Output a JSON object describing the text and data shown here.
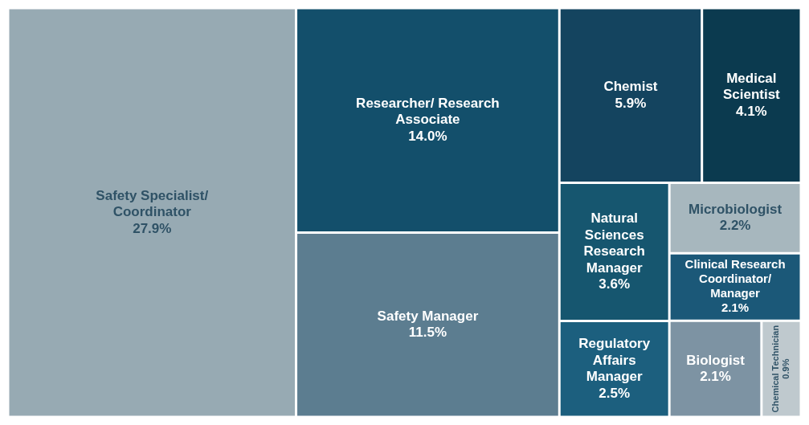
{
  "chart_data": {
    "type": "other",
    "categories": [
      "Safety Specialist/ Coordinator",
      "Researcher/ Research Associate",
      "Safety Manager",
      "Chemist",
      "Medical Scientist",
      "Natural Sciences Research Manager",
      "Regulatory Affairs Manager",
      "Microbiologist",
      "Clinical Research Coordinator/ Manager",
      "Biologist",
      "Chemical Technician"
    ],
    "values": [
      27.9,
      14.0,
      11.5,
      5.9,
      4.1,
      3.6,
      2.5,
      2.2,
      2.1,
      2.1,
      0.9
    ],
    "value_labels": [
      "27.9%",
      "14.0%",
      "11.5%",
      "5.9%",
      "4.1%",
      "3.6%",
      "2.5%",
      "2.2%",
      "2.1%",
      "2.1%",
      "0.9%"
    ],
    "colors": [
      "#97aab3",
      "#134f6b",
      "#5c7d90",
      "#14445f",
      "#0b3a4f",
      "#16566f",
      "#1c5f7e",
      "#a7b7be",
      "#1b5878",
      "#7d93a3",
      "#bfc9ce"
    ]
  }
}
